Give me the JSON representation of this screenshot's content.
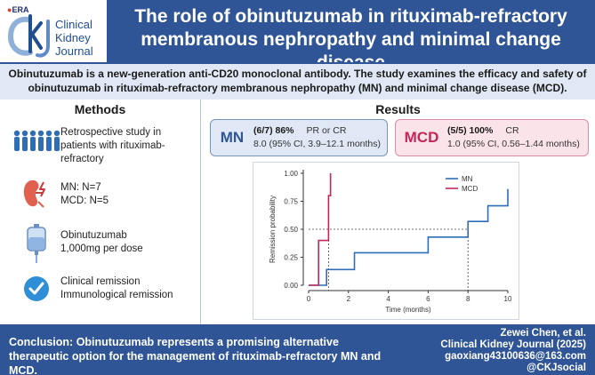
{
  "header": {
    "era_label": "ERA",
    "journal_name_line1": "Clinical",
    "journal_name_line2": "Kidney",
    "journal_name_line3": "Journal",
    "title_line1": "The role of obinutuzumab in rituximab-refractory",
    "title_line2": "membranous nephropathy and minimal change disease"
  },
  "intro": {
    "text": "Obinutuzumab is a new-generation anti-CD20 monoclonal antibody. The study examines the efficacy and safety of obinutuzumab in rituximab-refractory membranous nephropathy (MN) and minimal change disease (MCD)."
  },
  "methods": {
    "title": "Methods",
    "items": [
      {
        "icon": "people-icon",
        "lines": [
          "Retrospective study in",
          "patients with rituximab-",
          "refractory"
        ]
      },
      {
        "icon": "kidney-icon",
        "lines": [
          "MN: N=7",
          "MCD: N=5"
        ]
      },
      {
        "icon": "iv-bag-icon",
        "lines": [
          "Obinutuzumab",
          "1,000mg per dose"
        ]
      },
      {
        "icon": "check-circle-icon",
        "lines": [
          "Clinical remission",
          "Immunological remission"
        ]
      }
    ]
  },
  "results": {
    "title": "Results",
    "mn": {
      "tag": "MN",
      "fraction": "(6/7) 86%",
      "outcome": "PR or CR",
      "time": "8.0 (95% CI, 3.9–12.1 months)"
    },
    "mcd": {
      "tag": "MCD",
      "fraction": "(5/5) 100%",
      "outcome": "CR",
      "time": "1.0 (95% CI, 0.56–1.44 months)"
    }
  },
  "chart_data": {
    "type": "line",
    "step": true,
    "xlabel": "Time (months)",
    "ylabel": "Remission probability",
    "xlim": [
      0,
      10
    ],
    "ylim": [
      0,
      1
    ],
    "xticks": [
      0,
      2,
      4,
      6,
      8,
      10
    ],
    "yticks": [
      0.0,
      0.25,
      0.5,
      0.75,
      1.0
    ],
    "ytick_labels": [
      "0.00",
      "0.25",
      "0.50",
      "0.75",
      "1.00"
    ],
    "legend_position": "top-right",
    "median_line_y": 0.5,
    "series": [
      {
        "name": "MN",
        "color": "#2f6db5",
        "x": [
          0,
          0.9,
          0.9,
          2.3,
          2.3,
          6.0,
          6.0,
          8.0,
          8.0,
          9.0,
          9.0,
          9.7,
          9.7,
          10.0,
          10.0
        ],
        "y": [
          0,
          0,
          0.14,
          0.14,
          0.29,
          0.29,
          0.43,
          0.43,
          0.57,
          0.57,
          0.71,
          0.71,
          0.71,
          0.71,
          0.86
        ]
      },
      {
        "name": "MCD",
        "color": "#c0285a",
        "x": [
          0,
          0.5,
          0.5,
          1.0,
          1.0,
          1.0,
          1.0,
          1.1,
          1.1
        ],
        "y": [
          0,
          0,
          0.4,
          0.4,
          0.6,
          0.6,
          0.8,
          0.8,
          1.0
        ]
      }
    ],
    "median_markers": [
      {
        "series": "MCD",
        "x": 1.0
      },
      {
        "series": "MN",
        "x": 8.0
      }
    ]
  },
  "footer": {
    "conclusion": "Conclusion: Obinutuzumab represents a promising alternative therapeutic option for the management of rituximab-refractory MN and MCD.",
    "author": "Zewei Chen, et al.",
    "journal_ref": "Clinical Kidney Journal (2025)",
    "email": "gaoxiang43100636@163.com",
    "handle": "@CKJsocial"
  },
  "colors": {
    "brand_blue": "#2f5596",
    "mn_blue": "#2f6db5",
    "mcd_red": "#c0285a",
    "intro_bg": "#dfe8f4",
    "mcd_bg": "#fbe3ea"
  }
}
